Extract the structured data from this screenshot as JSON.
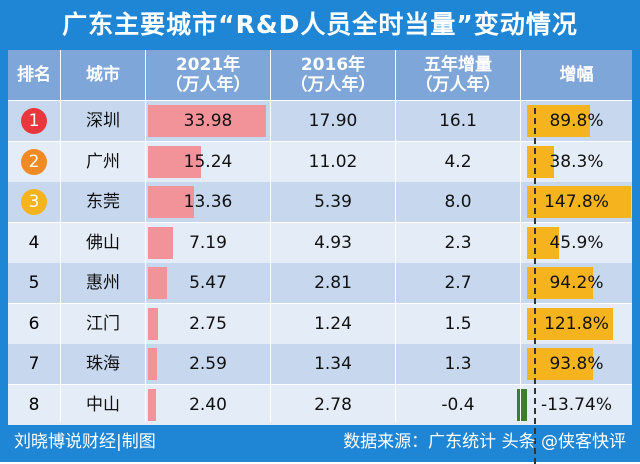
{
  "title": "广东主要城市“R&D人员全时当量”变动情况",
  "headers": {
    "rank": "排名",
    "city": "城市",
    "y2021": [
      "2021年",
      "（万人年）"
    ],
    "y2016": [
      "2016年",
      "（万人年）"
    ],
    "delta": [
      "五年增量",
      "（万人年）"
    ],
    "growth": "增幅"
  },
  "rows": [
    {
      "rank": "1",
      "city": "深圳",
      "v2021": "33.98",
      "v2016": "17.90",
      "delta": "16.1",
      "growth": "89.8%"
    },
    {
      "rank": "2",
      "city": "广州",
      "v2021": "15.24",
      "v2016": "11.02",
      "delta": "4.2",
      "growth": "38.3%"
    },
    {
      "rank": "3",
      "city": "东莞",
      "v2021": "13.36",
      "v2016": "5.39",
      "delta": "8.0",
      "growth": "147.8%"
    },
    {
      "rank": "4",
      "city": "佛山",
      "v2021": "7.19",
      "v2016": "4.93",
      "delta": "2.3",
      "growth": "45.9%"
    },
    {
      "rank": "5",
      "city": "惠州",
      "v2021": "5.47",
      "v2016": "2.81",
      "delta": "2.7",
      "growth": "94.2%"
    },
    {
      "rank": "6",
      "city": "江门",
      "v2021": "2.75",
      "v2016": "1.24",
      "delta": "1.5",
      "growth": "121.8%"
    },
    {
      "rank": "7",
      "city": "珠海",
      "v2021": "2.59",
      "v2016": "1.34",
      "delta": "1.3",
      "growth": "93.8%"
    },
    {
      "rank": "8",
      "city": "中山",
      "v2021": "2.40",
      "v2016": "2.78",
      "delta": "-0.4",
      "growth": "-13.74%"
    }
  ],
  "footer": {
    "left": "刘晓博说财经|制图",
    "right": "数据来源：广东统计  头条 @侠客快评"
  },
  "colors": {
    "frame": "#1f86d6",
    "header": "#7fa6d8",
    "row_dark": "#c6d7ee",
    "row_light": "#e4ecf7",
    "bar_2021": "#f2939a",
    "bar_growth": "#f5b31e",
    "bar_negative": "#3f7d2e",
    "badge_1": "#e8383d",
    "badge_2": "#f08a24",
    "badge_3": "#f5b31e"
  }
}
